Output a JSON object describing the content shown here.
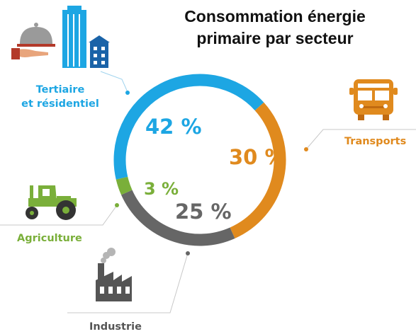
{
  "title": {
    "line1": "Consommation énergie",
    "line2": "primaire par secteur"
  },
  "chart_data": {
    "type": "pie",
    "variant": "donut",
    "title": "Consommation énergie primaire par secteur",
    "series": [
      {
        "name": "Tertiaire et résidentiel",
        "value": 42,
        "label": "42 %",
        "color": "#1da6e3",
        "icon": "building-and-service-icon"
      },
      {
        "name": "Transports",
        "value": 30,
        "label": "30 %",
        "color": "#e08a1e",
        "icon": "bus-icon"
      },
      {
        "name": "Industrie",
        "value": 25,
        "label": "25 %",
        "color": "#666666",
        "icon": "factory-icon"
      },
      {
        "name": "Agriculture",
        "value": 3,
        "label": "3 %",
        "color": "#7aaf3a",
        "icon": "tractor-icon"
      }
    ]
  },
  "labels": {
    "tertiaire_line1": "Tertiaire",
    "tertiaire_line2": "et résidentiel",
    "transports": "Transports",
    "industrie": "Industrie",
    "agriculture": "Agriculture"
  }
}
